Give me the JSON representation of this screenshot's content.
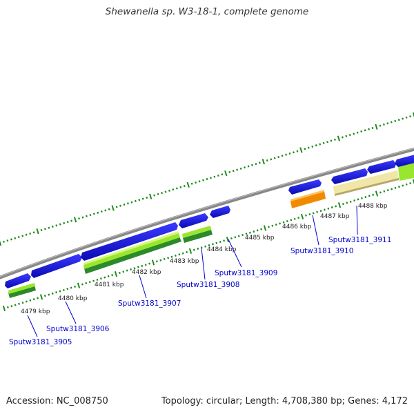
{
  "title": "Shewanella sp. W3-18-1, complete genome",
  "footer": {
    "accession": "Accession: NC_008750",
    "summary": "Topology: circular; Length: 4,708,380 bp; Genes: 4,172"
  },
  "colors": {
    "backbone": "#888888",
    "tick": "#1e8c1e",
    "gene_blue": "#1414e6",
    "gene_orange": "#f28a00",
    "cds_green": "#2c8a2c",
    "cds_lightgreen": "#9ae62e",
    "cds_tan": "#efe6a8",
    "label": "#0000cc"
  },
  "kbp_labels": [
    "4479 kbp",
    "4480 kbp",
    "4481 kbp",
    "4482 kbp",
    "4483 kbp",
    "4484 kbp",
    "4485 kbp",
    "4486 kbp",
    "4487 kbp",
    "4488 kbp"
  ],
  "gene_labels": [
    "Sputw3181_3905",
    "Sputw3181_3906",
    "Sputw3181_3907",
    "Sputw3181_3908",
    "Sputw3181_3909",
    "Sputw3181_3910",
    "Sputw3181_3911"
  ]
}
